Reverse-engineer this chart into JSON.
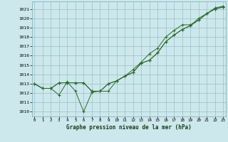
{
  "xlabel": "Graphe pression niveau de la mer (hPa)",
  "bg_color": "#cce8ec",
  "grid_color": "#9bbfc4",
  "line_color": "#2d6a2d",
  "x_ticks": [
    0,
    1,
    2,
    3,
    4,
    5,
    6,
    7,
    8,
    9,
    10,
    11,
    12,
    13,
    14,
    15,
    16,
    17,
    18,
    19,
    20,
    21,
    22,
    23
  ],
  "y_ticks": [
    1010,
    1011,
    1012,
    1013,
    1014,
    1015,
    1016,
    1017,
    1018,
    1019,
    1020,
    1021
  ],
  "ylim": [
    1009.5,
    1021.8
  ],
  "xlim": [
    -0.3,
    23.3
  ],
  "series1": [
    1013.0,
    1012.5,
    1012.5,
    1011.8,
    1013.2,
    1012.2,
    1010.0,
    1012.1,
    1012.2,
    1013.0,
    1013.3,
    1013.8,
    1014.2,
    1015.2,
    1015.5,
    1016.3,
    1017.5,
    1018.2,
    1018.8,
    1019.2,
    1019.8,
    1020.5,
    1021.0,
    1021.2
  ],
  "series2": [
    1013.0,
    1012.5,
    1012.5,
    1013.1,
    1013.1,
    1013.1,
    1013.1,
    1012.2,
    1012.2,
    1012.2,
    1013.3,
    1013.8,
    1014.2,
    1015.2,
    1015.5,
    1016.3,
    1017.5,
    1018.2,
    1018.8,
    1019.2,
    1020.0,
    1020.5,
    1021.0,
    1021.2
  ],
  "series3": [
    1013.0,
    1012.5,
    1012.5,
    1013.1,
    1013.1,
    1013.1,
    1013.1,
    1012.2,
    1012.2,
    1013.0,
    1013.3,
    1013.8,
    1014.5,
    1015.3,
    1016.2,
    1016.8,
    1018.0,
    1018.7,
    1019.3,
    1019.3,
    1019.8,
    1020.5,
    1021.1,
    1021.3
  ]
}
